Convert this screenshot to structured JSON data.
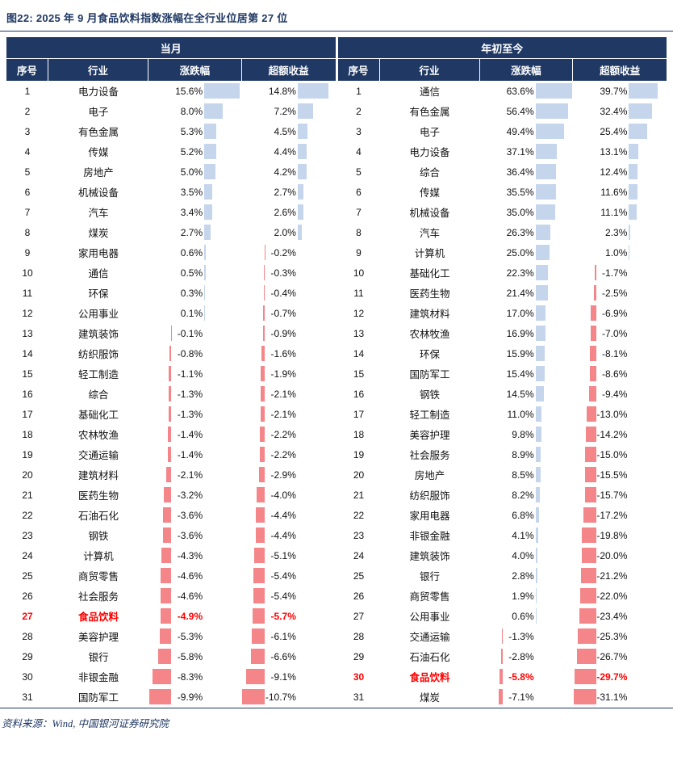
{
  "title": "图22: 2025 年 9 月食品饮料指数涨幅在全行业位居第 27 位",
  "source": "资料来源：Wind, 中国银河证券研究院",
  "accent_colors": {
    "header_bg": "#1f3864",
    "positive_bar": "#c5d5ec",
    "negative_bar": "#f48589",
    "highlight_text": "#ff0000",
    "header_text": "#ffffff"
  },
  "chart_data": [
    {
      "type": "table",
      "period": "当月",
      "columns": [
        "序号",
        "行业",
        "涨跌幅",
        "超额收益"
      ],
      "highlight_industry": "食品饮料",
      "rows": [
        {
          "rank": 1,
          "industry": "电力设备",
          "change_pct": 15.6,
          "excess_pct": 14.8
        },
        {
          "rank": 2,
          "industry": "电子",
          "change_pct": 8.0,
          "excess_pct": 7.2
        },
        {
          "rank": 3,
          "industry": "有色金属",
          "change_pct": 5.3,
          "excess_pct": 4.5
        },
        {
          "rank": 4,
          "industry": "传媒",
          "change_pct": 5.2,
          "excess_pct": 4.4
        },
        {
          "rank": 5,
          "industry": "房地产",
          "change_pct": 5.0,
          "excess_pct": 4.2
        },
        {
          "rank": 6,
          "industry": "机械设备",
          "change_pct": 3.5,
          "excess_pct": 2.7
        },
        {
          "rank": 7,
          "industry": "汽车",
          "change_pct": 3.4,
          "excess_pct": 2.6
        },
        {
          "rank": 8,
          "industry": "煤炭",
          "change_pct": 2.7,
          "excess_pct": 2.0
        },
        {
          "rank": 9,
          "industry": "家用电器",
          "change_pct": 0.6,
          "excess_pct": -0.2
        },
        {
          "rank": 10,
          "industry": "通信",
          "change_pct": 0.5,
          "excess_pct": -0.3
        },
        {
          "rank": 11,
          "industry": "环保",
          "change_pct": 0.3,
          "excess_pct": -0.4
        },
        {
          "rank": 12,
          "industry": "公用事业",
          "change_pct": 0.1,
          "excess_pct": -0.7
        },
        {
          "rank": 13,
          "industry": "建筑装饰",
          "change_pct": -0.1,
          "excess_pct": -0.9
        },
        {
          "rank": 14,
          "industry": "纺织服饰",
          "change_pct": -0.8,
          "excess_pct": -1.6
        },
        {
          "rank": 15,
          "industry": "轻工制造",
          "change_pct": -1.1,
          "excess_pct": -1.9
        },
        {
          "rank": 16,
          "industry": "综合",
          "change_pct": -1.3,
          "excess_pct": -2.1
        },
        {
          "rank": 17,
          "industry": "基础化工",
          "change_pct": -1.3,
          "excess_pct": -2.1
        },
        {
          "rank": 18,
          "industry": "农林牧渔",
          "change_pct": -1.4,
          "excess_pct": -2.2
        },
        {
          "rank": 19,
          "industry": "交通运输",
          "change_pct": -1.4,
          "excess_pct": -2.2
        },
        {
          "rank": 20,
          "industry": "建筑材料",
          "change_pct": -2.1,
          "excess_pct": -2.9
        },
        {
          "rank": 21,
          "industry": "医药生物",
          "change_pct": -3.2,
          "excess_pct": -4.0
        },
        {
          "rank": 22,
          "industry": "石油石化",
          "change_pct": -3.6,
          "excess_pct": -4.4
        },
        {
          "rank": 23,
          "industry": "钢铁",
          "change_pct": -3.6,
          "excess_pct": -4.4
        },
        {
          "rank": 24,
          "industry": "计算机",
          "change_pct": -4.3,
          "excess_pct": -5.1
        },
        {
          "rank": 25,
          "industry": "商贸零售",
          "change_pct": -4.6,
          "excess_pct": -5.4
        },
        {
          "rank": 26,
          "industry": "社会服务",
          "change_pct": -4.6,
          "excess_pct": -5.4
        },
        {
          "rank": 27,
          "industry": "食品饮料",
          "change_pct": -4.9,
          "excess_pct": -5.7
        },
        {
          "rank": 28,
          "industry": "美容护理",
          "change_pct": -5.3,
          "excess_pct": -6.1
        },
        {
          "rank": 29,
          "industry": "银行",
          "change_pct": -5.8,
          "excess_pct": -6.6
        },
        {
          "rank": 30,
          "industry": "非银金融",
          "change_pct": -8.3,
          "excess_pct": -9.1
        },
        {
          "rank": 31,
          "industry": "国防军工",
          "change_pct": -9.9,
          "excess_pct": -10.7
        }
      ]
    },
    {
      "type": "table",
      "period": "年初至今",
      "columns": [
        "序号",
        "行业",
        "涨跌幅",
        "超额收益"
      ],
      "highlight_industry": "食品饮料",
      "rows": [
        {
          "rank": 1,
          "industry": "通信",
          "change_pct": 63.6,
          "excess_pct": 39.7
        },
        {
          "rank": 2,
          "industry": "有色金属",
          "change_pct": 56.4,
          "excess_pct": 32.4
        },
        {
          "rank": 3,
          "industry": "电子",
          "change_pct": 49.4,
          "excess_pct": 25.4
        },
        {
          "rank": 4,
          "industry": "电力设备",
          "change_pct": 37.1,
          "excess_pct": 13.1
        },
        {
          "rank": 5,
          "industry": "综合",
          "change_pct": 36.4,
          "excess_pct": 12.4
        },
        {
          "rank": 6,
          "industry": "传媒",
          "change_pct": 35.5,
          "excess_pct": 11.6
        },
        {
          "rank": 7,
          "industry": "机械设备",
          "change_pct": 35.0,
          "excess_pct": 11.1
        },
        {
          "rank": 8,
          "industry": "汽车",
          "change_pct": 26.3,
          "excess_pct": 2.3
        },
        {
          "rank": 9,
          "industry": "计算机",
          "change_pct": 25.0,
          "excess_pct": 1.0
        },
        {
          "rank": 10,
          "industry": "基础化工",
          "change_pct": 22.3,
          "excess_pct": -1.7
        },
        {
          "rank": 11,
          "industry": "医药生物",
          "change_pct": 21.4,
          "excess_pct": -2.5
        },
        {
          "rank": 12,
          "industry": "建筑材料",
          "change_pct": 17.0,
          "excess_pct": -6.9
        },
        {
          "rank": 13,
          "industry": "农林牧渔",
          "change_pct": 16.9,
          "excess_pct": -7.0
        },
        {
          "rank": 14,
          "industry": "环保",
          "change_pct": 15.9,
          "excess_pct": -8.1
        },
        {
          "rank": 15,
          "industry": "国防军工",
          "change_pct": 15.4,
          "excess_pct": -8.6
        },
        {
          "rank": 16,
          "industry": "钢铁",
          "change_pct": 14.5,
          "excess_pct": -9.4
        },
        {
          "rank": 17,
          "industry": "轻工制造",
          "change_pct": 11.0,
          "excess_pct": -13.0
        },
        {
          "rank": 18,
          "industry": "美容护理",
          "change_pct": 9.8,
          "excess_pct": -14.2
        },
        {
          "rank": 19,
          "industry": "社会服务",
          "change_pct": 8.9,
          "excess_pct": -15.0
        },
        {
          "rank": 20,
          "industry": "房地产",
          "change_pct": 8.5,
          "excess_pct": -15.5
        },
        {
          "rank": 21,
          "industry": "纺织服饰",
          "change_pct": 8.2,
          "excess_pct": -15.7
        },
        {
          "rank": 22,
          "industry": "家用电器",
          "change_pct": 6.8,
          "excess_pct": -17.2
        },
        {
          "rank": 23,
          "industry": "非银金融",
          "change_pct": 4.1,
          "excess_pct": -19.8
        },
        {
          "rank": 24,
          "industry": "建筑装饰",
          "change_pct": 4.0,
          "excess_pct": -20.0
        },
        {
          "rank": 25,
          "industry": "银行",
          "change_pct": 2.8,
          "excess_pct": -21.2
        },
        {
          "rank": 26,
          "industry": "商贸零售",
          "change_pct": 1.9,
          "excess_pct": -22.0
        },
        {
          "rank": 27,
          "industry": "公用事业",
          "change_pct": 0.6,
          "excess_pct": -23.4
        },
        {
          "rank": 28,
          "industry": "交通运输",
          "change_pct": -1.3,
          "excess_pct": -25.3
        },
        {
          "rank": 29,
          "industry": "石油石化",
          "change_pct": -2.8,
          "excess_pct": -26.7
        },
        {
          "rank": 30,
          "industry": "食品饮料",
          "change_pct": -5.8,
          "excess_pct": -29.7
        },
        {
          "rank": 31,
          "industry": "煤炭",
          "change_pct": -7.1,
          "excess_pct": -31.1
        }
      ]
    }
  ]
}
